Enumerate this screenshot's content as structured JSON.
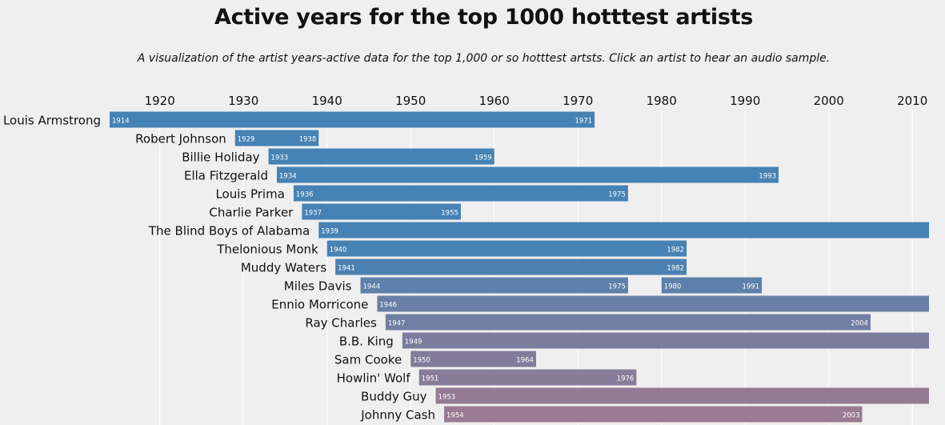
{
  "page": {
    "title": "Active years for the top 1000 hotttest artists",
    "subtitle": "A visualization of the artist years-active data for the top 1,000 or so hotttest artsts. Click an artist to hear an audio sample."
  },
  "colors": {
    "background": "#efefef",
    "bar_start": "#4682b4",
    "bar_end": "#9a7a90",
    "grid": "#ffffff"
  },
  "chart_data": {
    "type": "bar",
    "orientation": "horizontal-range",
    "x_ticks": [
      1920,
      1930,
      1940,
      1950,
      1960,
      1970,
      1980,
      1990,
      2000,
      2010
    ],
    "xlim": [
      1914,
      2012
    ],
    "grid": true,
    "artists": [
      {
        "name": "Louis Armstrong",
        "spans": [
          [
            1914,
            1971
          ]
        ]
      },
      {
        "name": "Robert Johnson",
        "spans": [
          [
            1929,
            1938
          ]
        ]
      },
      {
        "name": "Billie Holiday",
        "spans": [
          [
            1933,
            1959
          ]
        ]
      },
      {
        "name": "Ella Fitzgerald",
        "spans": [
          [
            1934,
            1993
          ]
        ]
      },
      {
        "name": "Louis Prima",
        "spans": [
          [
            1936,
            1975
          ]
        ]
      },
      {
        "name": "Charlie Parker",
        "spans": [
          [
            1937,
            1955
          ]
        ]
      },
      {
        "name": "The Blind Boys of Alabama",
        "spans": [
          [
            1939,
            null
          ]
        ]
      },
      {
        "name": "Thelonious Monk",
        "spans": [
          [
            1940,
            1982
          ]
        ]
      },
      {
        "name": "Muddy Waters",
        "spans": [
          [
            1941,
            1982
          ]
        ]
      },
      {
        "name": "Miles Davis",
        "spans": [
          [
            1944,
            1975
          ],
          [
            1980,
            1991
          ]
        ]
      },
      {
        "name": "Ennio Morricone",
        "spans": [
          [
            1946,
            null
          ]
        ]
      },
      {
        "name": "Ray Charles",
        "spans": [
          [
            1947,
            2004
          ]
        ]
      },
      {
        "name": "B.B. King",
        "spans": [
          [
            1949,
            null
          ]
        ]
      },
      {
        "name": "Sam Cooke",
        "spans": [
          [
            1950,
            1964
          ]
        ]
      },
      {
        "name": "Howlin' Wolf",
        "spans": [
          [
            1951,
            1976
          ]
        ]
      },
      {
        "name": "Buddy Guy",
        "spans": [
          [
            1953,
            null
          ]
        ]
      },
      {
        "name": "Johnny Cash",
        "spans": [
          [
            1954,
            2003
          ]
        ]
      }
    ]
  }
}
